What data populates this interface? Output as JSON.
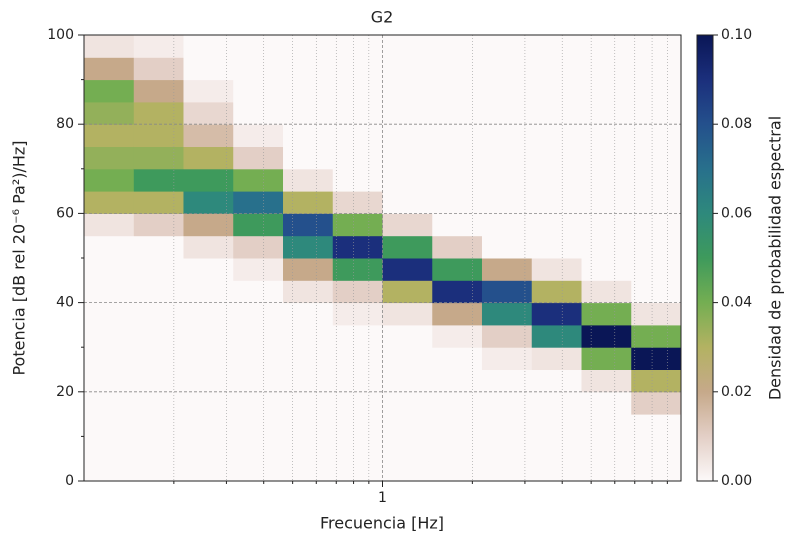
{
  "chart_data": {
    "type": "heatmap",
    "title": "G2",
    "xlabel": "Frecuencia [Hz]",
    "ylabel": "Potencia [dB rel 20⁻⁶ Pa²)/Hz]",
    "colorbar_label": "Densidad de probabilidad espectral",
    "xscale": "log",
    "xlim": [
      0.1,
      10
    ],
    "xticks": [
      1
    ],
    "xminorticks": [
      0.2,
      0.3,
      0.4,
      0.5,
      0.6,
      0.7,
      0.8,
      0.9,
      2,
      3,
      4,
      5,
      6,
      7,
      8,
      9
    ],
    "ylim": [
      0,
      100
    ],
    "yticks": [
      0,
      20,
      40,
      60,
      80,
      100
    ],
    "yminorticks": [
      10,
      30,
      50,
      70,
      90
    ],
    "grid": true,
    "clim": [
      0,
      0.1
    ],
    "cticks": [
      {
        "value": 0,
        "label": "0.00"
      },
      {
        "value": 0.02,
        "label": "0.02"
      },
      {
        "value": 0.04,
        "label": "0.04"
      },
      {
        "value": 0.06,
        "label": "0.06"
      },
      {
        "value": 0.08,
        "label": "0.08"
      },
      {
        "value": 0.1,
        "label": "0.10"
      }
    ],
    "colormap": [
      "#fcf9f9",
      "#e3cfc6",
      "#c6a98a",
      "#b3b262",
      "#74ae52",
      "#3e9a5c",
      "#2e897c",
      "#28708c",
      "#24508c",
      "#1b2f7c",
      "#0a1656"
    ],
    "xbins": [
      0.1,
      0.1468,
      0.2154,
      0.3162,
      0.4642,
      0.6813,
      1,
      1.468,
      2.154,
      3.162,
      4.642,
      6.813,
      10
    ],
    "ybins": [
      0,
      5,
      10,
      15,
      20,
      25,
      30,
      35,
      40,
      45,
      50,
      55,
      60,
      65,
      70,
      75,
      80,
      85,
      90,
      95,
      100
    ],
    "z": [
      [
        0,
        0,
        0,
        0,
        0,
        0,
        0,
        0,
        0,
        0,
        0,
        0.005,
        0.03,
        0.04,
        0.035,
        0.03,
        0.035,
        0.04,
        0.02,
        0.005
      ],
      [
        0,
        0,
        0,
        0,
        0,
        0,
        0,
        0,
        0,
        0,
        0,
        0.01,
        0.03,
        0.05,
        0.035,
        0.03,
        0.03,
        0.02,
        0.01,
        0.003
      ],
      [
        0,
        0,
        0,
        0,
        0,
        0,
        0,
        0,
        0,
        0,
        0.005,
        0.02,
        0.06,
        0.05,
        0.03,
        0.015,
        0.008,
        0.003,
        0,
        0
      ],
      [
        0,
        0,
        0,
        0,
        0,
        0,
        0,
        0,
        0,
        0.003,
        0.01,
        0.05,
        0.07,
        0.04,
        0.01,
        0.003,
        0,
        0,
        0,
        0
      ],
      [
        0,
        0,
        0,
        0,
        0,
        0,
        0,
        0,
        0.005,
        0.02,
        0.06,
        0.08,
        0.03,
        0.005,
        0,
        0,
        0,
        0,
        0,
        0
      ],
      [
        0,
        0,
        0,
        0,
        0,
        0,
        0,
        0.003,
        0.01,
        0.05,
        0.09,
        0.04,
        0.008,
        0,
        0,
        0,
        0,
        0,
        0,
        0
      ],
      [
        0,
        0,
        0,
        0,
        0,
        0,
        0,
        0.005,
        0.03,
        0.09,
        0.05,
        0.008,
        0,
        0,
        0,
        0,
        0,
        0,
        0,
        0
      ],
      [
        0,
        0,
        0,
        0,
        0,
        0,
        0.003,
        0.02,
        0.09,
        0.05,
        0.01,
        0,
        0,
        0,
        0,
        0,
        0,
        0,
        0,
        0
      ],
      [
        0,
        0,
        0,
        0,
        0,
        0.003,
        0.01,
        0.06,
        0.08,
        0.02,
        0,
        0,
        0,
        0,
        0,
        0,
        0,
        0,
        0,
        0
      ],
      [
        0,
        0,
        0,
        0,
        0,
        0.005,
        0.06,
        0.09,
        0.03,
        0.005,
        0,
        0,
        0,
        0,
        0,
        0,
        0,
        0,
        0,
        0
      ],
      [
        0,
        0,
        0,
        0,
        0.005,
        0.04,
        0.1,
        0.04,
        0.005,
        0,
        0,
        0,
        0,
        0,
        0,
        0,
        0,
        0,
        0,
        0
      ],
      [
        0,
        0,
        0,
        0.01,
        0.03,
        0.1,
        0.04,
        0.005,
        0,
        0,
        0,
        0,
        0,
        0,
        0,
        0,
        0,
        0,
        0,
        0
      ]
    ]
  }
}
